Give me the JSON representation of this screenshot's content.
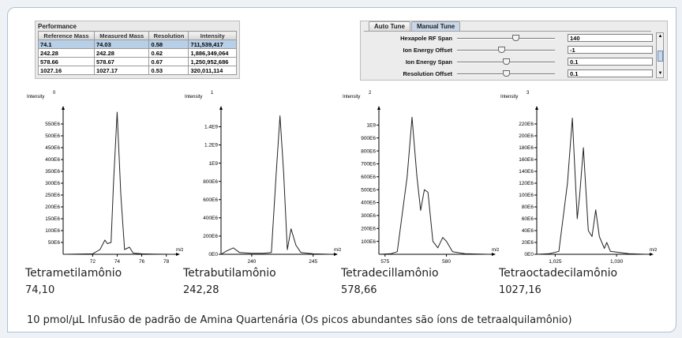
{
  "performance": {
    "title": "Performance",
    "columns": [
      "Reference Mass",
      "Measured Mass",
      "Resolution",
      "Intensity"
    ],
    "rows": [
      [
        "74.1",
        "74.03",
        "0.58",
        "711,539,417"
      ],
      [
        "242.28",
        "242.28",
        "0.62",
        "1,886,349,064"
      ],
      [
        "578.66",
        "578.67",
        "0.67",
        "1,250,952,686"
      ],
      [
        "1027.16",
        "1027.17",
        "0.53",
        "320,011,114"
      ]
    ]
  },
  "tune": {
    "tabs": [
      "Auto Tune",
      "Manual Tune"
    ],
    "active_tab": "Manual Tune",
    "params": [
      {
        "label": "Hexapole RF Span",
        "value": "140",
        "slider": 0.6
      },
      {
        "label": "Ion Energy Offset",
        "value": "-1",
        "slider": 0.45
      },
      {
        "label": "Ion Energy Span",
        "value": "0.1",
        "slider": 0.5
      },
      {
        "label": "Resolution Offset",
        "value": "0.1",
        "slider": 0.5
      }
    ]
  },
  "charts": [
    {
      "index_label": "0",
      "ylabel": "Intensity",
      "xlabel": "m/z",
      "name": "Tetrametilamônio",
      "mass": "74,10",
      "x_range": [
        69.6,
        78.6
      ],
      "y_range": [
        0,
        600000000
      ],
      "x_ticks": [
        {
          "v": 72,
          "t": "72"
        },
        {
          "v": 74,
          "t": "74"
        },
        {
          "v": 76,
          "t": "76"
        },
        {
          "v": 78,
          "t": "78"
        }
      ],
      "y_ticks": [
        {
          "v": 50000000,
          "t": "50E6"
        },
        {
          "v": 100000000,
          "t": "100E6"
        },
        {
          "v": 150000000,
          "t": "150E6"
        },
        {
          "v": 200000000,
          "t": "200E6"
        },
        {
          "v": 250000000,
          "t": "250E6"
        },
        {
          "v": 300000000,
          "t": "300E6"
        },
        {
          "v": 350000000,
          "t": "350E6"
        },
        {
          "v": 400000000,
          "t": "400E6"
        },
        {
          "v": 450000000,
          "t": "450E6"
        },
        {
          "v": 500000000,
          "t": "500E6"
        },
        {
          "v": 550000000,
          "t": "550E6"
        }
      ],
      "points": [
        [
          69.6,
          0
        ],
        [
          72.0,
          2000000
        ],
        [
          72.6,
          20000000
        ],
        [
          73.0,
          60000000
        ],
        [
          73.2,
          45000000
        ],
        [
          73.5,
          50000000
        ],
        [
          73.7,
          300000000
        ],
        [
          74.0,
          600000000
        ],
        [
          74.3,
          250000000
        ],
        [
          74.6,
          20000000
        ],
        [
          75.0,
          30000000
        ],
        [
          75.3,
          5000000
        ],
        [
          76.0,
          2000000
        ],
        [
          77.0,
          1000000
        ],
        [
          78.6,
          0
        ]
      ]
    },
    {
      "index_label": "1",
      "ylabel": "Intensity",
      "xlabel": "m/z",
      "name": "Tetrabutilamônio",
      "mass": "242,28",
      "x_range": [
        237.5,
        246.5
      ],
      "y_range": [
        0,
        1560000000
      ],
      "x_ticks": [
        {
          "v": 240,
          "t": "240"
        },
        {
          "v": 245,
          "t": "245"
        }
      ],
      "y_ticks": [
        {
          "v": 0,
          "t": "0E0"
        },
        {
          "v": 200000000,
          "t": "200E6"
        },
        {
          "v": 400000000,
          "t": "400E6"
        },
        {
          "v": 600000000,
          "t": "600E6"
        },
        {
          "v": 800000000,
          "t": "800E6"
        },
        {
          "v": 1000000000,
          "t": "1E9"
        },
        {
          "v": 1200000000,
          "t": "1.2E9"
        },
        {
          "v": 1400000000,
          "t": "1.4E9"
        }
      ],
      "points": [
        [
          237.5,
          0
        ],
        [
          238.0,
          40000000
        ],
        [
          238.5,
          70000000
        ],
        [
          239.0,
          20000000
        ],
        [
          240.0,
          10000000
        ],
        [
          241.0,
          10000000
        ],
        [
          241.6,
          20000000
        ],
        [
          242.0,
          900000000
        ],
        [
          242.3,
          1520000000
        ],
        [
          242.6,
          900000000
        ],
        [
          242.9,
          50000000
        ],
        [
          243.2,
          280000000
        ],
        [
          243.6,
          100000000
        ],
        [
          244.0,
          20000000
        ],
        [
          245.0,
          5000000
        ],
        [
          246.5,
          0
        ]
      ]
    },
    {
      "index_label": "2",
      "ylabel": "Intensity",
      "xlabel": "m/z",
      "name": "Tetradecillamônio",
      "mass": "578,66",
      "x_range": [
        574.5,
        583.5
      ],
      "y_range": [
        0,
        1100000000
      ],
      "x_ticks": [
        {
          "v": 575,
          "t": "575"
        },
        {
          "v": 580,
          "t": "580"
        }
      ],
      "y_ticks": [
        {
          "v": 100000000,
          "t": "100E6"
        },
        {
          "v": 200000000,
          "t": "200E6"
        },
        {
          "v": 300000000,
          "t": "300E6"
        },
        {
          "v": 400000000,
          "t": "400E6"
        },
        {
          "v": 500000000,
          "t": "500E6"
        },
        {
          "v": 600000000,
          "t": "600E6"
        },
        {
          "v": 700000000,
          "t": "700E6"
        },
        {
          "v": 800000000,
          "t": "800E6"
        },
        {
          "v": 900000000,
          "t": "900E6"
        },
        {
          "v": 1000000000,
          "t": "1E9"
        }
      ],
      "points": [
        [
          574.5,
          0
        ],
        [
          575.5,
          5000000
        ],
        [
          576.0,
          20000000
        ],
        [
          576.8,
          600000000
        ],
        [
          577.2,
          1060000000
        ],
        [
          577.6,
          600000000
        ],
        [
          577.9,
          340000000
        ],
        [
          578.2,
          500000000
        ],
        [
          578.5,
          480000000
        ],
        [
          578.9,
          100000000
        ],
        [
          579.3,
          50000000
        ],
        [
          579.7,
          130000000
        ],
        [
          580.0,
          100000000
        ],
        [
          580.5,
          20000000
        ],
        [
          581.5,
          5000000
        ],
        [
          583.5,
          0
        ]
      ]
    },
    {
      "index_label": "3",
      "ylabel": "Intensity",
      "xlabel": "m/z",
      "name": "Tetraoctadecilamônio",
      "mass": "1027,16",
      "x_range": [
        1023.5,
        1032.5
      ],
      "y_range": [
        0,
        240000000
      ],
      "x_ticks": [
        {
          "v": 1025,
          "t": "1,025"
        },
        {
          "v": 1030,
          "t": "1,030"
        }
      ],
      "y_ticks": [
        {
          "v": 0,
          "t": "0E0"
        },
        {
          "v": 20000000,
          "t": "20E6"
        },
        {
          "v": 40000000,
          "t": "40E6"
        },
        {
          "v": 60000000,
          "t": "60E6"
        },
        {
          "v": 80000000,
          "t": "80E6"
        },
        {
          "v": 100000000,
          "t": "100E6"
        },
        {
          "v": 120000000,
          "t": "120E6"
        },
        {
          "v": 140000000,
          "t": "140E6"
        },
        {
          "v": 160000000,
          "t": "160E6"
        },
        {
          "v": 180000000,
          "t": "180E6"
        },
        {
          "v": 200000000,
          "t": "200E6"
        },
        {
          "v": 220000000,
          "t": "220E6"
        }
      ],
      "points": [
        [
          1023.5,
          0
        ],
        [
          1024.5,
          1000000
        ],
        [
          1025.3,
          5000000
        ],
        [
          1026.0,
          120000000
        ],
        [
          1026.4,
          230000000
        ],
        [
          1026.8,
          60000000
        ],
        [
          1027.0,
          100000000
        ],
        [
          1027.3,
          180000000
        ],
        [
          1027.7,
          40000000
        ],
        [
          1028.0,
          30000000
        ],
        [
          1028.3,
          75000000
        ],
        [
          1028.6,
          30000000
        ],
        [
          1029.0,
          10000000
        ],
        [
          1029.2,
          20000000
        ],
        [
          1029.5,
          5000000
        ],
        [
          1031.0,
          1000000
        ],
        [
          1032.5,
          0
        ]
      ]
    }
  ],
  "caption": "10 pmol/µL Infusão de padrão de Amina Quartenária (Os picos abundantes são íons de tetraalquilamônio)"
}
